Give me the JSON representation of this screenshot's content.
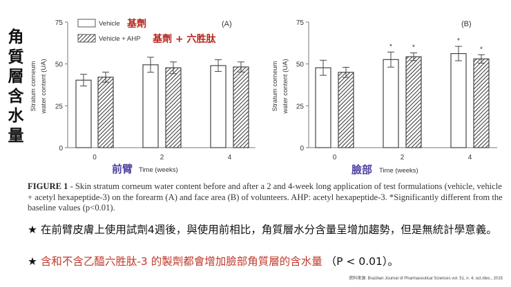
{
  "side_title": [
    "角",
    "質",
    "層",
    "含",
    "水",
    "量"
  ],
  "legend": {
    "vehicle_en": "Vehicle",
    "vehicle_zh": "基劑",
    "ahp_en": "Vehicle + AHP",
    "ahp_zh": "基劑 + 六胜肽"
  },
  "panels": {
    "A": {
      "label": "(A)",
      "xlabel_zh": "前臂",
      "xlabel_en": "Time (weeks)",
      "ylabel_1": "Stratum corneum",
      "ylabel_2": "water content (UA)"
    },
    "B": {
      "label": "(B)",
      "xlabel_zh": "臉部",
      "xlabel_en": "Time (weeks)",
      "ylabel_1": "Stratum corneum",
      "ylabel_2": "water content (UA)"
    }
  },
  "caption": {
    "figure_label": "FIGURE 1",
    "text": " - Skin stratum corneum water content before and after a 2 and 4-week long application of test formulations (vehicle, vehicle + acetyl hexapeptide-3) on the forearm (A) and face area (B) of volunteers. AHP: acetyl hexapeptide-3. *Significantly different from the baseline values (p<0.01)."
  },
  "notes": [
    {
      "star": "★",
      "text": "在前臂皮膚上使用試劑4週後，與使用前相比，角質層水分含量呈增加趨勢，但是無統計學意義。"
    },
    {
      "star": "★",
      "text": "含和不含乙醯六胜肽-3 的製劑都會增加臉部角質層的含水量",
      "suffix": "（P < 0.01）。"
    }
  ],
  "source": "資料來源: Brazilian Journal of Pharmaceutical Sciences vol. 51, n. 4, oct./dec., 2015",
  "colors": {
    "zh_legend": "#b5261e",
    "zh_xlabel": "#4b3fa0",
    "red_note": "#c0392b"
  },
  "chart_data": [
    {
      "type": "bar",
      "title": "(A) Forearm",
      "xlabel": "Time (weeks)",
      "ylabel": "Stratum corneum water content (UA)",
      "categories": [
        "0",
        "2",
        "4"
      ],
      "ylim": [
        0,
        75
      ],
      "yticks": [
        0,
        25,
        50,
        75
      ],
      "grid": false,
      "legend_position": "top-left",
      "series": [
        {
          "name": "Vehicle",
          "values": [
            40.3,
            49.5,
            49.0
          ],
          "errors": [
            3.5,
            4.5,
            3.5
          ],
          "significant": [
            false,
            false,
            false
          ]
        },
        {
          "name": "Vehicle + AHP",
          "values": [
            42.1,
            47.7,
            48.2
          ],
          "errors": [
            3.0,
            3.5,
            3.0
          ],
          "significant": [
            false,
            false,
            false
          ]
        }
      ]
    },
    {
      "type": "bar",
      "title": "(B) Face",
      "xlabel": "Time (weeks)",
      "ylabel": "Stratum corneum water content (UA)",
      "categories": [
        "0",
        "2",
        "4"
      ],
      "ylim": [
        0,
        75
      ],
      "yticks": [
        0,
        25,
        50,
        75
      ],
      "grid": false,
      "series": [
        {
          "name": "Vehicle",
          "values": [
            47.7,
            52.6,
            56.2
          ],
          "errors": [
            4.5,
            4.5,
            4.3
          ],
          "significant": [
            false,
            true,
            true
          ]
        },
        {
          "name": "Vehicle + AHP",
          "values": [
            45.0,
            54.3,
            53.0
          ],
          "errors": [
            3.0,
            2.3,
            2.5
          ],
          "significant": [
            false,
            true,
            true
          ]
        }
      ],
      "annotations": [
        "* significantly different from baseline (p<0.01)"
      ]
    }
  ]
}
